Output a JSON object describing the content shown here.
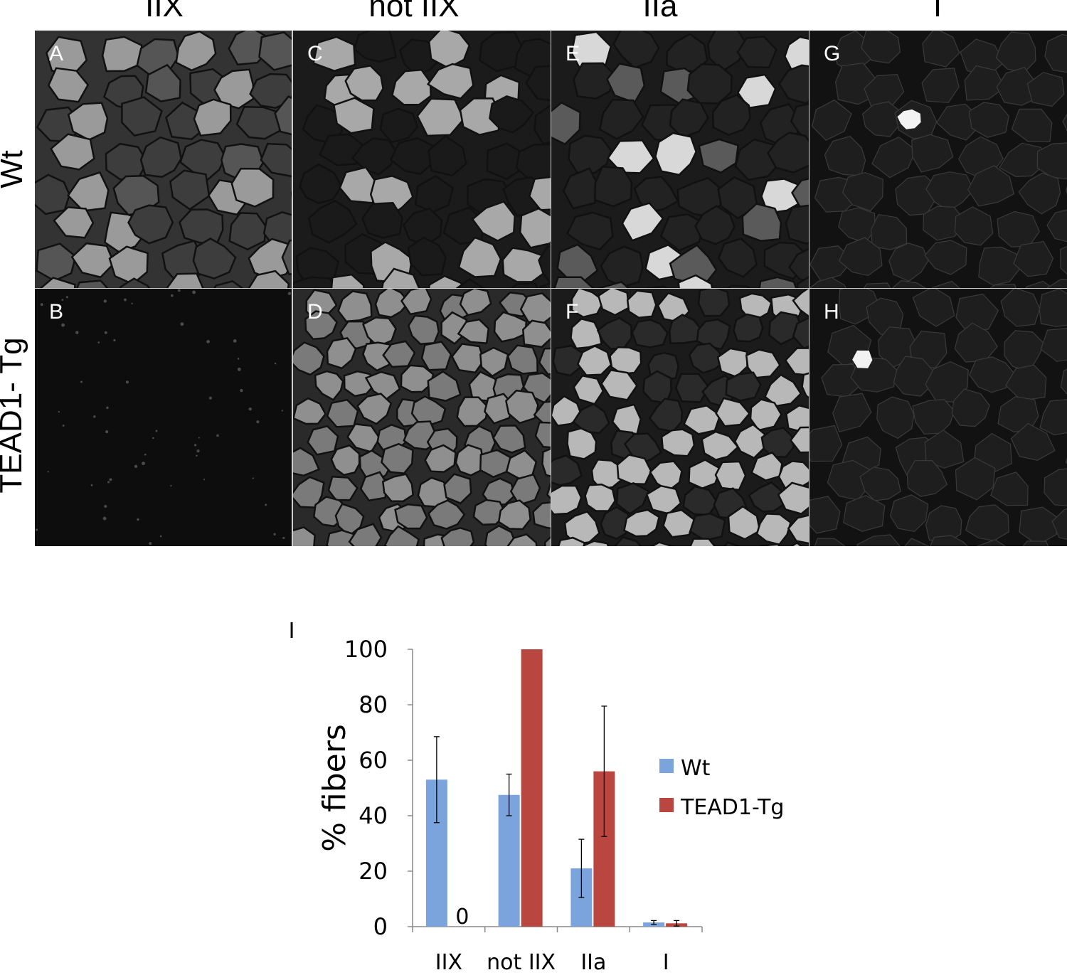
{
  "columns": [
    "IIX",
    "not IIX",
    "IIa",
    "I"
  ],
  "rows": [
    "Wt",
    "TEAD1- Tg"
  ],
  "panels": [
    {
      "letter": "A",
      "pattern": "mixed-gray-fibers"
    },
    {
      "letter": "C",
      "pattern": "bright-fibers-mixed"
    },
    {
      "letter": "E",
      "pattern": "sparse-bright-fibers"
    },
    {
      "letter": "G",
      "pattern": "single-bright-fiber"
    },
    {
      "letter": "B",
      "pattern": "dark-background"
    },
    {
      "letter": "D",
      "pattern": "all-bright-fibers"
    },
    {
      "letter": "F",
      "pattern": "many-bright-fibers"
    },
    {
      "letter": "H",
      "pattern": "single-bright-fiber"
    }
  ],
  "chart_panel_letter": "I",
  "chart_data": {
    "type": "bar",
    "ylabel": "% fibers",
    "ylim": [
      0,
      100
    ],
    "yticks": [
      0,
      20,
      40,
      60,
      80,
      100
    ],
    "categories": [
      "IIX",
      "not IIX",
      "IIa",
      "I"
    ],
    "series": [
      {
        "name": "Wt",
        "color": "#7ba3dc",
        "values": [
          53,
          47.5,
          21,
          1.5
        ],
        "errors": [
          15.5,
          7.5,
          10.5,
          0.7
        ]
      },
      {
        "name": "TEAD1-Tg",
        "color": "#b9463f",
        "values": [
          0,
          100,
          56,
          1.2
        ],
        "errors": [
          0,
          0,
          23.5,
          1.0
        ]
      }
    ],
    "annotations": [
      {
        "text": "0",
        "category": "IIX",
        "series": "TEAD1-Tg"
      }
    ],
    "legend_position": "right"
  }
}
